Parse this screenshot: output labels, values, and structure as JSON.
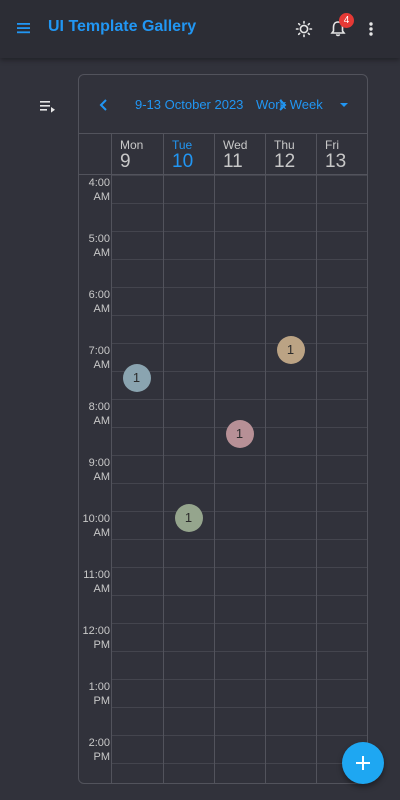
{
  "app": {
    "title": "UI Template Gallery",
    "notification_count": "4",
    "accent_color": "#2196f3",
    "icons": [
      "menu-icon",
      "theme-icon",
      "bell-icon",
      "more-vertical-icon",
      "sort-icon",
      "chevron-left-icon",
      "chevron-right-icon",
      "dropdown-icon",
      "plus-icon"
    ]
  },
  "scheduler": {
    "date_range": "9-13 October 2023",
    "view": "Work Week",
    "days": [
      {
        "name": "Mon",
        "num": "9",
        "today": false
      },
      {
        "name": "Tue",
        "num": "10",
        "today": true
      },
      {
        "name": "Wed",
        "num": "11",
        "today": false
      },
      {
        "name": "Thu",
        "num": "12",
        "today": false
      },
      {
        "name": "Fri",
        "num": "13",
        "today": false
      }
    ],
    "time_slots": [
      {
        "time": "4:00",
        "ampm": "AM"
      },
      {
        "time": "5:00",
        "ampm": "AM"
      },
      {
        "time": "6:00",
        "ampm": "AM"
      },
      {
        "time": "7:00",
        "ampm": "AM"
      },
      {
        "time": "8:00",
        "ampm": "AM"
      },
      {
        "time": "9:00",
        "ampm": "AM"
      },
      {
        "time": "10:00",
        "ampm": "AM"
      },
      {
        "time": "11:00",
        "ampm": "AM"
      },
      {
        "time": "12:00",
        "ampm": "PM"
      },
      {
        "time": "1:00",
        "ampm": "PM"
      },
      {
        "time": "2:00",
        "ampm": "PM"
      }
    ],
    "events": [
      {
        "day_index": 0,
        "start_hour": 7.5,
        "count": "1",
        "color": "#8aa4b0"
      },
      {
        "day_index": 1,
        "start_hour": 10.0,
        "count": "1",
        "color": "#95a58d"
      },
      {
        "day_index": 2,
        "start_hour": 8.5,
        "count": "1",
        "color": "#b79096"
      },
      {
        "day_index": 3,
        "start_hour": 7.0,
        "count": "1",
        "color": "#bba384"
      }
    ]
  }
}
